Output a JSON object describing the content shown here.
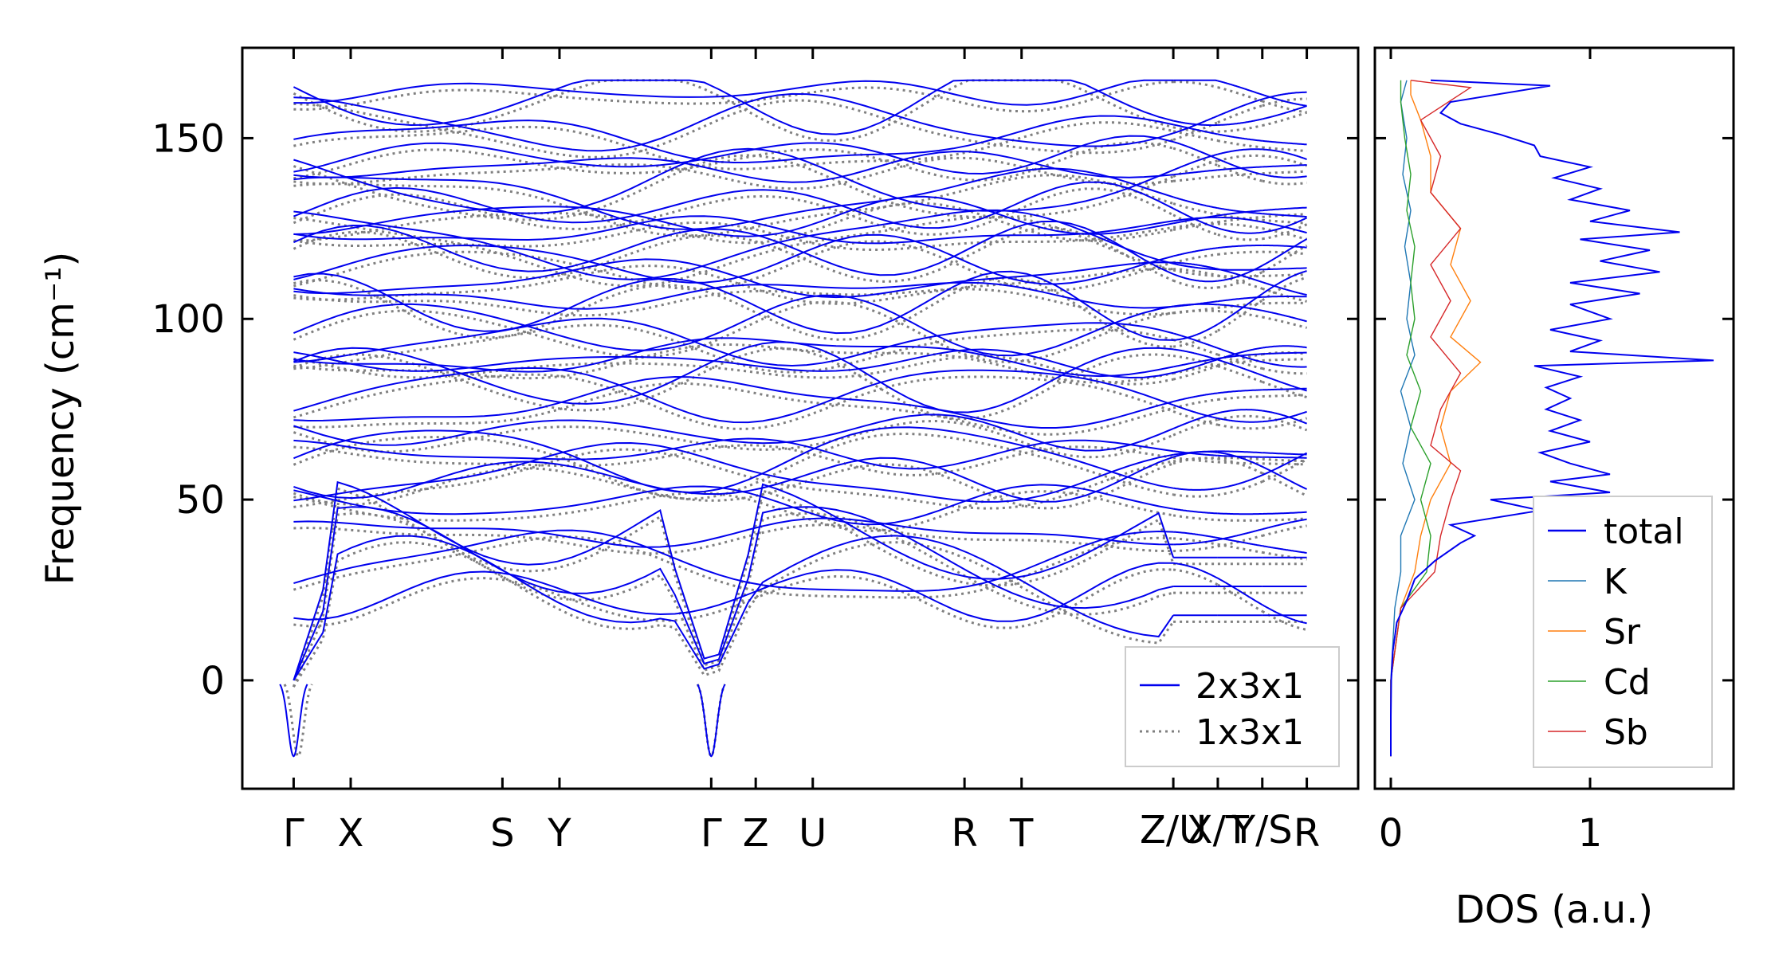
{
  "chart_data": [
    {
      "type": "line",
      "panel": "phonon-band-structure",
      "ylabel": "Frequency (cm⁻¹)",
      "ylim": [
        -30,
        175
      ],
      "yticks": [
        0,
        50,
        100,
        150
      ],
      "x_ticks": [
        {
          "label": "Γ",
          "pos": 0.0
        },
        {
          "label": "X",
          "pos": 0.5
        },
        {
          "label": "S",
          "pos": 1.83
        },
        {
          "label": "Y",
          "pos": 2.33
        },
        {
          "label": "Γ",
          "pos": 3.66
        },
        {
          "label": "Z",
          "pos": 4.05
        },
        {
          "label": "U",
          "pos": 4.55
        },
        {
          "label": "R",
          "pos": 5.88
        },
        {
          "label": "T",
          "pos": 6.38
        },
        {
          "label": "Z/U",
          "pos": 7.71
        },
        {
          "label": "X/T",
          "pos": 8.1
        },
        {
          "label": "Y/S",
          "pos": 8.49
        },
        {
          "label": "R",
          "pos": 8.88
        }
      ],
      "x_range": [
        -0.45,
        9.33
      ],
      "segments": [
        {
          "from": 0,
          "to": 7.71
        },
        {
          "from": 7.71,
          "to": 8.1
        },
        {
          "from": 8.1,
          "to": 8.49
        },
        {
          "from": 8.49,
          "to": 8.88
        }
      ],
      "series": [
        {
          "name": "2x3x1",
          "color": "#0000ee",
          "style": "solid"
        },
        {
          "name": "1x3x1",
          "color": "#808080",
          "style": "dotted"
        }
      ],
      "band_levels_gamma": [
        0,
        0,
        0,
        24,
        32,
        41,
        49,
        56,
        57,
        62,
        63,
        69,
        77,
        80,
        84,
        88,
        90,
        94,
        98,
        104,
        107,
        111,
        116,
        119,
        121,
        124,
        128,
        131,
        133,
        137,
        142,
        145,
        149,
        154,
        161,
        163
      ],
      "soft_mode_min": -21
    },
    {
      "type": "line",
      "panel": "density-of-states",
      "xlabel": "DOS (a.u.)",
      "xlim": [
        -0.08,
        1.72
      ],
      "xticks": [
        0,
        1
      ],
      "ylim": [
        -30,
        175
      ],
      "series": [
        {
          "name": "total",
          "color": "#0000ee",
          "points": [
            [
              0,
              -21
            ],
            [
              0,
              -10
            ],
            [
              0.002,
              0
            ],
            [
              0.01,
              8
            ],
            [
              0.03,
              16
            ],
            [
              0.08,
              22
            ],
            [
              0.12,
              28
            ],
            [
              0.22,
              33
            ],
            [
              0.35,
              38
            ],
            [
              0.42,
              40
            ],
            [
              0.3,
              43
            ],
            [
              0.75,
              47
            ],
            [
              0.5,
              50
            ],
            [
              1.1,
              52
            ],
            [
              0.8,
              55
            ],
            [
              1.1,
              57
            ],
            [
              0.9,
              60
            ],
            [
              0.75,
              63
            ],
            [
              1.0,
              66
            ],
            [
              0.8,
              69
            ],
            [
              0.95,
              72
            ],
            [
              0.78,
              75
            ],
            [
              0.9,
              78
            ],
            [
              0.78,
              81
            ],
            [
              0.95,
              84
            ],
            [
              0.72,
              87
            ],
            [
              1.62,
              88.5
            ],
            [
              0.9,
              91
            ],
            [
              1.05,
              94
            ],
            [
              0.8,
              97
            ],
            [
              1.1,
              100
            ],
            [
              0.9,
              104
            ],
            [
              1.25,
              107
            ],
            [
              0.9,
              110
            ],
            [
              1.35,
              113
            ],
            [
              1.05,
              116
            ],
            [
              1.3,
              119
            ],
            [
              0.95,
              122
            ],
            [
              1.45,
              124
            ],
            [
              1.0,
              127
            ],
            [
              1.2,
              130
            ],
            [
              0.9,
              133
            ],
            [
              1.05,
              136
            ],
            [
              0.82,
              139
            ],
            [
              1.0,
              142
            ],
            [
              0.75,
              145
            ],
            [
              0.72,
              148
            ],
            [
              0.55,
              151
            ],
            [
              0.35,
              154
            ],
            [
              0.25,
              157
            ],
            [
              0.3,
              160
            ],
            [
              0.8,
              164.5
            ],
            [
              0.2,
              166
            ]
          ]
        },
        {
          "name": "K",
          "color": "#1f77b4",
          "points": [
            [
              0,
              -21
            ],
            [
              0,
              0
            ],
            [
              0.02,
              20
            ],
            [
              0.05,
              30
            ],
            [
              0.05,
              40
            ],
            [
              0.12,
              50
            ],
            [
              0.06,
              60
            ],
            [
              0.1,
              70
            ],
            [
              0.05,
              80
            ],
            [
              0.12,
              90
            ],
            [
              0.08,
              100
            ],
            [
              0.1,
              110
            ],
            [
              0.07,
              120
            ],
            [
              0.1,
              130
            ],
            [
              0.06,
              140
            ],
            [
              0.08,
              150
            ],
            [
              0.05,
              160
            ],
            [
              0.08,
              166
            ]
          ]
        },
        {
          "name": "Sr",
          "color": "#ff7f0e",
          "points": [
            [
              0,
              -21
            ],
            [
              0,
              0
            ],
            [
              0.05,
              20
            ],
            [
              0.12,
              30
            ],
            [
              0.15,
              40
            ],
            [
              0.2,
              50
            ],
            [
              0.3,
              60
            ],
            [
              0.25,
              70
            ],
            [
              0.3,
              80
            ],
            [
              0.45,
              88
            ],
            [
              0.3,
              95
            ],
            [
              0.4,
              105
            ],
            [
              0.3,
              115
            ],
            [
              0.35,
              125
            ],
            [
              0.2,
              135
            ],
            [
              0.2,
              145
            ],
            [
              0.15,
              155
            ],
            [
              0.1,
              162
            ],
            [
              0.1,
              166
            ]
          ]
        },
        {
          "name": "Cd",
          "color": "#2ca02c",
          "points": [
            [
              0,
              -21
            ],
            [
              0,
              0
            ],
            [
              0.05,
              20
            ],
            [
              0.18,
              30
            ],
            [
              0.2,
              40
            ],
            [
              0.15,
              50
            ],
            [
              0.2,
              60
            ],
            [
              0.1,
              70
            ],
            [
              0.15,
              80
            ],
            [
              0.08,
              90
            ],
            [
              0.12,
              100
            ],
            [
              0.1,
              110
            ],
            [
              0.12,
              120
            ],
            [
              0.08,
              130
            ],
            [
              0.1,
              140
            ],
            [
              0.07,
              150
            ],
            [
              0.05,
              160
            ],
            [
              0.05,
              166
            ]
          ]
        },
        {
          "name": "Sb",
          "color": "#d62728",
          "points": [
            [
              0,
              -21
            ],
            [
              0,
              0
            ],
            [
              0.05,
              20
            ],
            [
              0.22,
              30
            ],
            [
              0.25,
              40
            ],
            [
              0.3,
              50
            ],
            [
              0.35,
              58
            ],
            [
              0.2,
              65
            ],
            [
              0.25,
              75
            ],
            [
              0.35,
              85
            ],
            [
              0.2,
              95
            ],
            [
              0.3,
              105
            ],
            [
              0.2,
              115
            ],
            [
              0.35,
              125
            ],
            [
              0.2,
              135
            ],
            [
              0.25,
              145
            ],
            [
              0.15,
              155
            ],
            [
              0.4,
              164
            ],
            [
              0.1,
              166
            ]
          ]
        }
      ]
    }
  ]
}
